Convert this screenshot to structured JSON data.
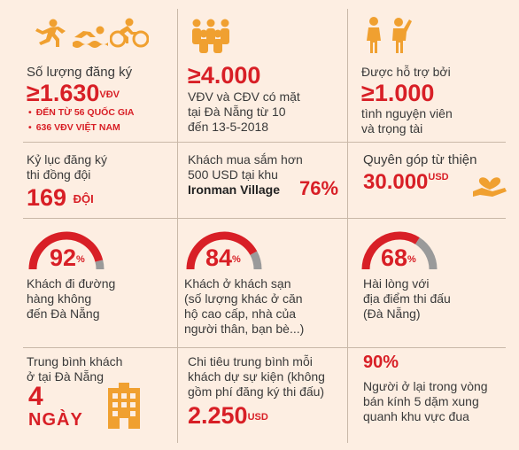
{
  "colors": {
    "accent": "#d81f26",
    "orange": "#f0a030",
    "gray": "#9a9a9a",
    "background": "#fdeee2"
  },
  "r1c1": {
    "icons": [
      "running-icon",
      "swimming-icon",
      "cycling-icon"
    ],
    "label": "Số lượng đăng ký",
    "number": "≥1.630",
    "unit": "VĐV",
    "bullet1": "ĐẾN TỪ 56 QUỐC GIA",
    "bullet2": "636 VĐV VIỆT NAM"
  },
  "r1c2": {
    "icon": "people-group-icon",
    "number": "≥4.000",
    "line1": "VĐV và CĐV có mặt",
    "line2": "tại Đà Nẵng từ 10",
    "line3": "đến 13-5-2018"
  },
  "r1c3": {
    "icon": "volunteer-icon",
    "line1": "Được hỗ trợ bởi",
    "number": "≥1.000",
    "line2": "tình nguyện viên",
    "line3": "và trọng tài"
  },
  "r2c1": {
    "line1": "Kỷ lục đăng ký",
    "line2": "thi đồng đội",
    "number": "169",
    "unit": "ĐỘI"
  },
  "r2c2": {
    "line1": "Khách mua sắm hơn",
    "line2": "500 USD tại khu",
    "line3": "Ironman Village",
    "percent": "76%"
  },
  "r2c3": {
    "icon": "charity-heart-icon",
    "line1": "Quyên góp từ thiện",
    "number": "30.000",
    "unit": "USD"
  },
  "r3c1": {
    "percent_value": 92,
    "number": "92",
    "unit": "%",
    "line1": "Khách đi đường",
    "line2": "hàng không",
    "line3": "đến Đà Nẵng"
  },
  "r3c2": {
    "percent_value": 84,
    "number": "84",
    "unit": "%",
    "line1": "Khách ở khách sạn",
    "line2": "(số lượng khác ở căn",
    "line3": "hộ cao cấp, nhà của",
    "line4": "người thân, bạn bè...)"
  },
  "r3c3": {
    "percent_value": 68,
    "number": "68",
    "unit": "%",
    "line1": "Hài lòng với",
    "line2": "địa điểm thi đấu",
    "line3": "(Đà Nẵng)"
  },
  "r4c1": {
    "icon": "hotel-building-icon",
    "line1": "Trung bình khách",
    "line2": "ở tại Đà Nẵng",
    "number": "4",
    "unit": "NGÀY"
  },
  "r4c2": {
    "line1": "Chi tiêu trung bình mỗi",
    "line2": "khách dự sự kiện (không",
    "line3": "gồm phí đăng ký thi đấu)",
    "number": "2.250",
    "unit": "USD"
  },
  "r4c3": {
    "percent": "90%",
    "line1": "Người ở lại trong vòng",
    "line2": "bán kính 5 dặm xung",
    "line3": "quanh khu vực đua"
  }
}
